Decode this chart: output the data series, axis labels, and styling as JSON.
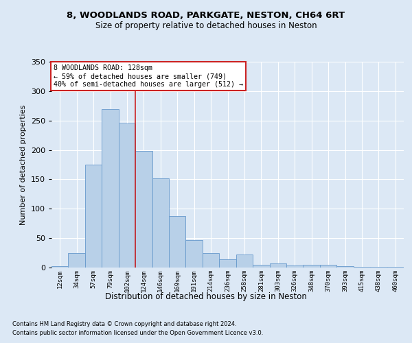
{
  "title1": "8, WOODLANDS ROAD, PARKGATE, NESTON, CH64 6RT",
  "title2": "Size of property relative to detached houses in Neston",
  "xlabel": "Distribution of detached houses by size in Neston",
  "ylabel": "Number of detached properties",
  "bar_labels": [
    "12sqm",
    "34sqm",
    "57sqm",
    "79sqm",
    "102sqm",
    "124sqm",
    "146sqm",
    "169sqm",
    "191sqm",
    "214sqm",
    "236sqm",
    "258sqm",
    "281sqm",
    "303sqm",
    "326sqm",
    "348sqm",
    "370sqm",
    "393sqm",
    "415sqm",
    "438sqm",
    "460sqm"
  ],
  "bar_values": [
    2,
    25,
    175,
    270,
    245,
    198,
    152,
    88,
    47,
    25,
    14,
    22,
    5,
    7,
    3,
    5,
    5,
    2,
    1,
    1,
    1
  ],
  "bar_color": "#b8d0e8",
  "bar_edge_color": "#6699cc",
  "background_color": "#dce8f5",
  "grid_color": "#ffffff",
  "vline_color": "#cc2222",
  "vline_x_index": 4.5,
  "annotation_text": "8 WOODLANDS ROAD: 128sqm\n← 59% of detached houses are smaller (749)\n40% of semi-detached houses are larger (512) →",
  "annotation_box_facecolor": "#ffffff",
  "annotation_box_edgecolor": "#cc2222",
  "footnote1": "Contains HM Land Registry data © Crown copyright and database right 2024.",
  "footnote2": "Contains public sector information licensed under the Open Government Licence v3.0.",
  "ylim": [
    0,
    350
  ],
  "yticks": [
    0,
    50,
    100,
    150,
    200,
    250,
    300,
    350
  ]
}
